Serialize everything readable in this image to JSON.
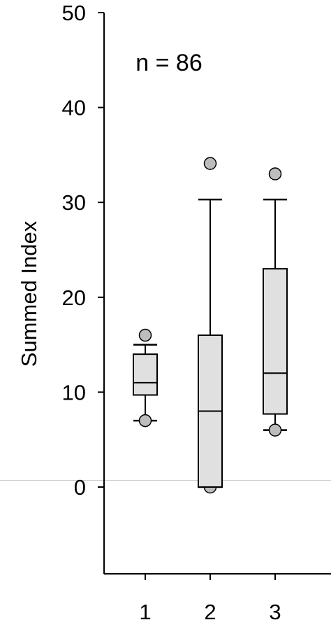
{
  "chart_data": {
    "type": "box",
    "annotation": "n = 86",
    "ylabel": "Summed Index",
    "xlabel": "",
    "categories": [
      "1",
      "2",
      "3"
    ],
    "ylim": [
      -9,
      50
    ],
    "yticks": [
      0,
      10,
      20,
      30,
      40,
      50
    ],
    "baseline": 0.7,
    "colors": {
      "box_fill": "#e0e0e0",
      "outlier_fill": "#bdbdbd",
      "line": "#000000",
      "baseline": "#d0d0d0"
    },
    "boxes": [
      {
        "category": "1",
        "q1": 9.7,
        "median": 11,
        "q3": 14,
        "whisker_low": 7,
        "whisker_high": 15,
        "outliers": [
          16,
          7
        ]
      },
      {
        "category": "2",
        "q1": 0,
        "median": 8,
        "q3": 16,
        "whisker_low": 0,
        "whisker_high": 30.3,
        "outliers": [
          34.1,
          0
        ]
      },
      {
        "category": "3",
        "q1": 7.7,
        "median": 12,
        "q3": 23,
        "whisker_low": 6,
        "whisker_high": 30.3,
        "outliers": [
          33,
          6
        ]
      }
    ]
  }
}
